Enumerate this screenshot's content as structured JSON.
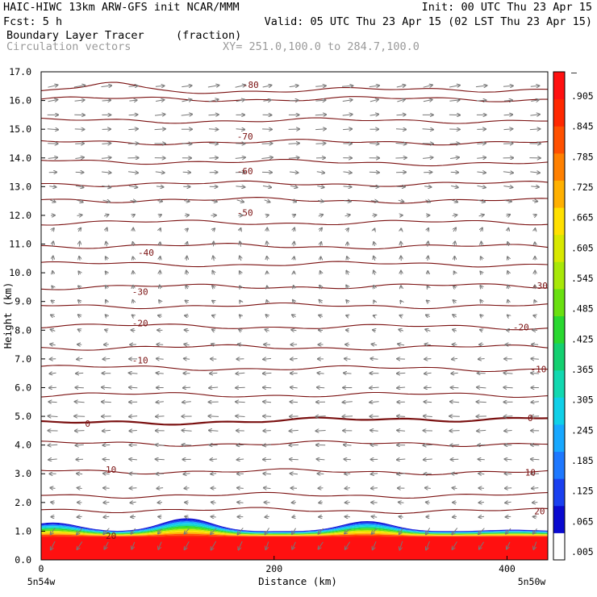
{
  "header": {
    "line1_left": "HAIC-HIWC 13km ARW-GFS init   NCAR/MMM",
    "line1_right": "Init: 00 UTC Thu 23 Apr 15",
    "line2_left": "Fcst:    5 h",
    "line2_right": "Valid: 05 UTC Thu 23 Apr 15 (02 LST Thu 23 Apr 15)",
    "field_name": "Boundary Layer Tracer",
    "field_units": "(fraction)",
    "vector_label": "Circulation vectors",
    "xsec_label": "XY= 251.0,100.0 to 284.7,100.0"
  },
  "colors": {
    "contour": "#7a1010",
    "vectors": "#787878",
    "axis": "#000000"
  },
  "chart_data": {
    "type": "heatmap",
    "description_of_overlays": "filled tracer fraction + temperature contours + circulation vectors",
    "xlabel": "Distance (km)",
    "ylabel": "Height (km)",
    "xlim": [
      0,
      435
    ],
    "ylim": [
      0,
      17
    ],
    "xticks": [
      {
        "value": 0,
        "label": "0"
      },
      {
        "value": 200,
        "label": "200"
      },
      {
        "value": 400,
        "label": "400"
      }
    ],
    "x_end_labels": {
      "left": "5n54w",
      "right": "5n50w"
    },
    "yticks": [
      {
        "value": 0,
        "label": "0.0"
      },
      {
        "value": 1,
        "label": "1.0"
      },
      {
        "value": 2,
        "label": "2.0"
      },
      {
        "value": 3,
        "label": "3.0"
      },
      {
        "value": 4,
        "label": "4.0"
      },
      {
        "value": 5,
        "label": "5.0"
      },
      {
        "value": 6,
        "label": "6.0"
      },
      {
        "value": 7,
        "label": "7.0"
      },
      {
        "value": 8,
        "label": "8.0"
      },
      {
        "value": 9,
        "label": "9.0"
      },
      {
        "value": 10,
        "label": "10.0"
      },
      {
        "value": 11,
        "label": "11.0"
      },
      {
        "value": 12,
        "label": "12.0"
      },
      {
        "value": 13,
        "label": "13.0"
      },
      {
        "value": 14,
        "label": "14.0"
      },
      {
        "value": 15,
        "label": "15.0"
      },
      {
        "value": 16,
        "label": "16.0"
      },
      {
        "value": 17,
        "label": "17.0"
      }
    ],
    "colorbar": {
      "labels": [
        ".005",
        ".065",
        ".125",
        ".185",
        ".245",
        ".305",
        ".365",
        ".425",
        ".485",
        ".545",
        ".605",
        ".665",
        ".725",
        ".785",
        ".845",
        ".905"
      ],
      "top_label": "–",
      "colors": [
        "#ffffff",
        "#0a0ad0",
        "#1a40f0",
        "#1e78ff",
        "#18a8ff",
        "#10d0e8",
        "#12d8b0",
        "#14d070",
        "#2ad830",
        "#6ae010",
        "#a8e808",
        "#d8e800",
        "#ffe000",
        "#ffb000",
        "#ff8000",
        "#ff5000",
        "#ff2800",
        "#ff1010"
      ]
    },
    "tracer_layer": {
      "full_value_top_km": 0.8,
      "base_top_km": 1.0,
      "mounds": [
        {
          "center_km": 10,
          "top_km": 1.3
        },
        {
          "center_km": 125,
          "top_km": 1.45
        },
        {
          "center_km": 280,
          "top_km": 1.35
        },
        {
          "center_km": 405,
          "top_km": 1.05
        }
      ]
    },
    "contours": [
      {
        "level": "-80",
        "y_left_km": 16.3,
        "y_right_km": 16.4,
        "label_x_km": 180,
        "label_y_km": 16.55,
        "bump_km": 0.3
      },
      {
        "level": "-70",
        "y_left_km": 15.3,
        "y_right_km": 15.3,
        "label_x_km": 175,
        "label_y_km": 14.75
      },
      {
        "level": "-60",
        "y_left_km": 13.9,
        "y_right_km": 13.8,
        "label_x_km": 175,
        "label_y_km": 13.55
      },
      {
        "level": "-50",
        "y_left_km": 12.55,
        "y_right_km": 12.5,
        "label_x_km": 175,
        "label_y_km": 12.1
      },
      {
        "level": "-40",
        "y_left_km": 10.95,
        "y_right_km": 10.9,
        "label_x_km": 90,
        "label_y_km": 10.7
      },
      {
        "level": "-30",
        "y_left_km": 9.5,
        "y_right_km": 9.55,
        "label_x_km": 85,
        "label_y_km": 9.35,
        "label2_x_km": 428
      },
      {
        "level": "-20",
        "y_left_km": 8.15,
        "y_right_km": 8.1,
        "label_x_km": 85,
        "label_y_km": 8.25,
        "label2_x_km": 412
      },
      {
        "level": "-10",
        "y_left_km": 6.7,
        "y_right_km": 6.65,
        "label_x_km": 85,
        "label_y_km": 6.95,
        "label2_x_km": 427
      },
      {
        "level": "0",
        "y_left_km": 4.75,
        "y_right_km": 4.95,
        "label_x_km": 40,
        "label_y_km": 4.75,
        "label2_x_km": 420,
        "thick": true
      },
      {
        "level": "10",
        "y_left_km": 3.1,
        "y_right_km": 3.05,
        "label_x_km": 60,
        "label_y_km": 3.15,
        "label2_x_km": 420
      },
      {
        "level": "20",
        "y_left_km": 1.75,
        "y_right_km": 1.7,
        "label_x_km": 60,
        "label_y_km": 0.85,
        "label2_x_km": 428
      }
    ],
    "extra_contours_km": [
      16.05,
      14.55,
      13.1,
      11.75,
      10.3,
      8.85,
      7.4,
      5.75,
      4.05,
      2.25
    ],
    "vectors": {
      "levels_km": [
        16.5,
        16,
        15.5,
        15,
        14.5,
        14,
        13.5,
        13,
        12.5,
        12,
        11.5,
        11,
        10.5,
        10,
        9.5,
        9,
        8.5,
        8,
        7.5,
        7,
        6.5,
        6,
        5.5,
        5,
        4.5,
        4,
        3.5,
        3,
        2.5,
        2,
        1.5,
        1.0,
        0.5
      ],
      "u_by_level": [
        1.0,
        0.9,
        1.0,
        1.0,
        1.0,
        1.0,
        0.9,
        0.8,
        0.6,
        0.4,
        0.15,
        0.0,
        -0.05,
        -0.1,
        -0.15,
        -0.2,
        -0.3,
        -0.4,
        -0.55,
        -0.7,
        -0.8,
        -0.85,
        -0.9,
        -0.95,
        -0.9,
        -0.85,
        -0.8,
        -0.7,
        -0.6,
        -0.5,
        -0.45,
        -0.5,
        -0.4
      ],
      "w_by_level": [
        0.15,
        0.15,
        0.05,
        0.0,
        0.0,
        0.05,
        -0.05,
        -0.1,
        -0.15,
        0.1,
        0.3,
        0.45,
        0.4,
        0.35,
        0.3,
        0.25,
        0.15,
        0.1,
        0.05,
        0.0,
        0.0,
        0.0,
        0.0,
        0.0,
        0.0,
        0.0,
        0.0,
        0.0,
        0.0,
        0.0,
        0.0,
        -0.6,
        -0.8
      ],
      "columns_km": [
        10,
        33,
        56,
        79,
        102,
        125,
        148,
        171,
        194,
        217,
        240,
        263,
        286,
        309,
        332,
        355,
        378,
        401,
        424
      ]
    }
  }
}
